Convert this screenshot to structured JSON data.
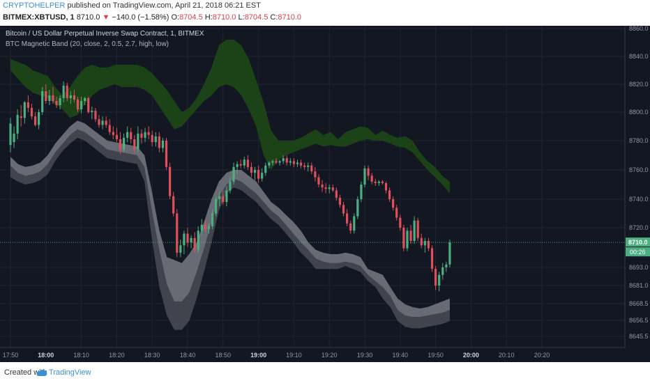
{
  "header": {
    "author": "CRYPTOHELPER",
    "published_text": "published on TradingView.com, April 21, 2018 06:21 EST",
    "symbol": "BITMEX:XBTUSD, 1",
    "last": "8710.0",
    "change": "−140.0 (−1.58%)",
    "o_label": "O:",
    "o_value": "8704.5",
    "h_label": "H:",
    "h_value": "8710.0",
    "l_label": "L:",
    "l_value": "8704.5",
    "c_label": "C:",
    "c_value": "8710.0"
  },
  "legend": {
    "title": "Bitcoin / US Dollar Perpetual Inverse Swap Contract, 1, BITMEX",
    "indicator": "BTC Magnetic Band (20, close, 2, 0.5, 2.7, high, low)"
  },
  "footer": {
    "created_with": "Created with",
    "brand": "TradingView"
  },
  "colors": {
    "background": "#131722",
    "up": "#4caf82",
    "down": "#e0505c",
    "upper_band": "#1e4a16",
    "lower_band_outer": "#4a4b55",
    "lower_band_inner": "#8b8c95",
    "last_price_tag": "#4caf82"
  },
  "chart_data": {
    "type": "candlestick",
    "y_ticks": [
      8860.0,
      8840.0,
      8820.0,
      8800.0,
      8780.0,
      8760.0,
      8740.0,
      8720.0,
      8693.0,
      8681.0,
      8668.5,
      8656.5,
      8645.5
    ],
    "y_tick_labels": [
      "8860.0",
      "8840.0",
      "8820.0",
      "8800.0",
      "8780.0",
      "8760.0",
      "8740.0",
      "8720.0",
      "8693.0",
      "8681.0",
      "8668.5",
      "8656.5",
      "8645.5"
    ],
    "x_ticks": [
      "17:50",
      "18:00",
      "18:10",
      "18:20",
      "18:30",
      "18:40",
      "18:50",
      "19:00",
      "19:10",
      "19:20",
      "19:30",
      "19:40",
      "19:50",
      "20:00",
      "20:10",
      "20:20"
    ],
    "x_tick_minutes": [
      0,
      10,
      20,
      30,
      40,
      50,
      60,
      70,
      80,
      90,
      100,
      110,
      120,
      130,
      140,
      150
    ],
    "last_price_label": "8710.0",
    "countdown_label": "00:26",
    "last_price": 8710,
    "candles": [
      {
        "o": 8777,
        "h": 8796,
        "l": 8772,
        "c": 8792
      },
      {
        "o": 8779,
        "h": 8790,
        "l": 8775,
        "c": 8785
      },
      {
        "o": 8785,
        "h": 8802,
        "l": 8781,
        "c": 8798
      },
      {
        "o": 8797,
        "h": 8805,
        "l": 8790,
        "c": 8796
      },
      {
        "o": 8796,
        "h": 8808,
        "l": 8792,
        "c": 8807
      },
      {
        "o": 8807,
        "h": 8812,
        "l": 8800,
        "c": 8803
      },
      {
        "o": 8803,
        "h": 8806,
        "l": 8795,
        "c": 8797
      },
      {
        "o": 8797,
        "h": 8800,
        "l": 8790,
        "c": 8791
      },
      {
        "o": 8791,
        "h": 8802,
        "l": 8788,
        "c": 8800
      },
      {
        "o": 8800,
        "h": 8818,
        "l": 8798,
        "c": 8815
      },
      {
        "o": 8815,
        "h": 8820,
        "l": 8806,
        "c": 8808
      },
      {
        "o": 8808,
        "h": 8816,
        "l": 8805,
        "c": 8812
      },
      {
        "o": 8812,
        "h": 8818,
        "l": 8806,
        "c": 8808
      },
      {
        "o": 8808,
        "h": 8811,
        "l": 8803,
        "c": 8805
      },
      {
        "o": 8805,
        "h": 8812,
        "l": 8802,
        "c": 8810
      },
      {
        "o": 8810,
        "h": 8822,
        "l": 8807,
        "c": 8819
      },
      {
        "o": 8819,
        "h": 8821,
        "l": 8808,
        "c": 8810
      },
      {
        "o": 8810,
        "h": 8815,
        "l": 8806,
        "c": 8812
      },
      {
        "o": 8812,
        "h": 8816,
        "l": 8807,
        "c": 8809
      },
      {
        "o": 8809,
        "h": 8811,
        "l": 8800,
        "c": 8802
      },
      {
        "o": 8802,
        "h": 8811,
        "l": 8799,
        "c": 8808
      },
      {
        "o": 8808,
        "h": 8811,
        "l": 8805,
        "c": 8810
      },
      {
        "o": 8810,
        "h": 8811,
        "l": 8799,
        "c": 8800
      },
      {
        "o": 8800,
        "h": 8804,
        "l": 8795,
        "c": 8801
      },
      {
        "o": 8801,
        "h": 8803,
        "l": 8793,
        "c": 8795
      },
      {
        "o": 8795,
        "h": 8798,
        "l": 8789,
        "c": 8791
      },
      {
        "o": 8791,
        "h": 8797,
        "l": 8788,
        "c": 8794
      },
      {
        "o": 8794,
        "h": 8797,
        "l": 8789,
        "c": 8791
      },
      {
        "o": 8791,
        "h": 8795,
        "l": 8784,
        "c": 8786
      },
      {
        "o": 8786,
        "h": 8790,
        "l": 8781,
        "c": 8784
      },
      {
        "o": 8784,
        "h": 8789,
        "l": 8779,
        "c": 8781
      },
      {
        "o": 8781,
        "h": 8786,
        "l": 8771,
        "c": 8774
      },
      {
        "o": 8774,
        "h": 8785,
        "l": 8772,
        "c": 8782
      },
      {
        "o": 8782,
        "h": 8790,
        "l": 8779,
        "c": 8786
      },
      {
        "o": 8786,
        "h": 8789,
        "l": 8778,
        "c": 8781
      },
      {
        "o": 8781,
        "h": 8784,
        "l": 8772,
        "c": 8774
      },
      {
        "o": 8774,
        "h": 8790,
        "l": 8772,
        "c": 8785
      },
      {
        "o": 8785,
        "h": 8788,
        "l": 8778,
        "c": 8782
      },
      {
        "o": 8782,
        "h": 8789,
        "l": 8779,
        "c": 8786
      },
      {
        "o": 8786,
        "h": 8790,
        "l": 8781,
        "c": 8784
      },
      {
        "o": 8784,
        "h": 8787,
        "l": 8776,
        "c": 8779
      },
      {
        "o": 8779,
        "h": 8786,
        "l": 8776,
        "c": 8783
      },
      {
        "o": 8783,
        "h": 8786,
        "l": 8772,
        "c": 8775
      },
      {
        "o": 8775,
        "h": 8782,
        "l": 8772,
        "c": 8780
      },
      {
        "o": 8780,
        "h": 8782,
        "l": 8760,
        "c": 8762
      },
      {
        "o": 8762,
        "h": 8765,
        "l": 8740,
        "c": 8742
      },
      {
        "o": 8742,
        "h": 8745,
        "l": 8728,
        "c": 8730
      },
      {
        "o": 8730,
        "h": 8733,
        "l": 8700,
        "c": 8703
      },
      {
        "o": 8703,
        "h": 8712,
        "l": 8700,
        "c": 8708
      },
      {
        "o": 8708,
        "h": 8718,
        "l": 8702,
        "c": 8716
      },
      {
        "o": 8716,
        "h": 8720,
        "l": 8707,
        "c": 8710
      },
      {
        "o": 8710,
        "h": 8715,
        "l": 8706,
        "c": 8713
      },
      {
        "o": 8713,
        "h": 8717,
        "l": 8703,
        "c": 8705
      },
      {
        "o": 8705,
        "h": 8721,
        "l": 8703,
        "c": 8718
      },
      {
        "o": 8718,
        "h": 8726,
        "l": 8715,
        "c": 8722
      },
      {
        "o": 8722,
        "h": 8725,
        "l": 8717,
        "c": 8719
      },
      {
        "o": 8719,
        "h": 8723,
        "l": 8716,
        "c": 8721
      },
      {
        "o": 8721,
        "h": 8733,
        "l": 8719,
        "c": 8730
      },
      {
        "o": 8730,
        "h": 8742,
        "l": 8728,
        "c": 8740
      },
      {
        "o": 8740,
        "h": 8745,
        "l": 8735,
        "c": 8742
      },
      {
        "o": 8742,
        "h": 8746,
        "l": 8736,
        "c": 8738
      },
      {
        "o": 8738,
        "h": 8749,
        "l": 8735,
        "c": 8746
      },
      {
        "o": 8746,
        "h": 8755,
        "l": 8744,
        "c": 8752
      },
      {
        "o": 8752,
        "h": 8765,
        "l": 8750,
        "c": 8762
      },
      {
        "o": 8762,
        "h": 8766,
        "l": 8757,
        "c": 8764
      },
      {
        "o": 8764,
        "h": 8767,
        "l": 8761,
        "c": 8763
      },
      {
        "o": 8763,
        "h": 8769,
        "l": 8761,
        "c": 8767
      },
      {
        "o": 8767,
        "h": 8770,
        "l": 8760,
        "c": 8762
      },
      {
        "o": 8762,
        "h": 8765,
        "l": 8755,
        "c": 8758
      },
      {
        "o": 8758,
        "h": 8762,
        "l": 8753,
        "c": 8760
      },
      {
        "o": 8760,
        "h": 8763,
        "l": 8751,
        "c": 8754
      },
      {
        "o": 8754,
        "h": 8761,
        "l": 8752,
        "c": 8758
      },
      {
        "o": 8758,
        "h": 8765,
        "l": 8756,
        "c": 8763
      },
      {
        "o": 8763,
        "h": 8766,
        "l": 8761,
        "c": 8765
      },
      {
        "o": 8765,
        "h": 8767,
        "l": 8763,
        "c": 8766
      },
      {
        "o": 8766,
        "h": 8768,
        "l": 8764,
        "c": 8765
      },
      {
        "o": 8765,
        "h": 8767,
        "l": 8763,
        "c": 8766
      },
      {
        "o": 8766,
        "h": 8770,
        "l": 8764,
        "c": 8768
      },
      {
        "o": 8768,
        "h": 8770,
        "l": 8763,
        "c": 8765
      },
      {
        "o": 8765,
        "h": 8768,
        "l": 8763,
        "c": 8766
      },
      {
        "o": 8766,
        "h": 8768,
        "l": 8762,
        "c": 8764
      },
      {
        "o": 8764,
        "h": 8767,
        "l": 8762,
        "c": 8765
      },
      {
        "o": 8765,
        "h": 8767,
        "l": 8761,
        "c": 8763
      },
      {
        "o": 8763,
        "h": 8765,
        "l": 8760,
        "c": 8762
      },
      {
        "o": 8762,
        "h": 8765,
        "l": 8759,
        "c": 8763
      },
      {
        "o": 8763,
        "h": 8765,
        "l": 8757,
        "c": 8759
      },
      {
        "o": 8759,
        "h": 8762,
        "l": 8752,
        "c": 8755
      },
      {
        "o": 8755,
        "h": 8757,
        "l": 8748,
        "c": 8750
      },
      {
        "o": 8750,
        "h": 8753,
        "l": 8745,
        "c": 8748
      },
      {
        "o": 8748,
        "h": 8751,
        "l": 8744,
        "c": 8747
      },
      {
        "o": 8747,
        "h": 8750,
        "l": 8744,
        "c": 8748
      },
      {
        "o": 8748,
        "h": 8750,
        "l": 8745,
        "c": 8746
      },
      {
        "o": 8746,
        "h": 8748,
        "l": 8739,
        "c": 8741
      },
      {
        "o": 8741,
        "h": 8743,
        "l": 8734,
        "c": 8736
      },
      {
        "o": 8736,
        "h": 8738,
        "l": 8728,
        "c": 8730
      },
      {
        "o": 8730,
        "h": 8733,
        "l": 8721,
        "c": 8723
      },
      {
        "o": 8723,
        "h": 8725,
        "l": 8716,
        "c": 8718
      },
      {
        "o": 8718,
        "h": 8730,
        "l": 8716,
        "c": 8728
      },
      {
        "o": 8728,
        "h": 8742,
        "l": 8726,
        "c": 8740
      },
      {
        "o": 8740,
        "h": 8752,
        "l": 8738,
        "c": 8750
      },
      {
        "o": 8750,
        "h": 8763,
        "l": 8748,
        "c": 8761
      },
      {
        "o": 8761,
        "h": 8763,
        "l": 8753,
        "c": 8756
      },
      {
        "o": 8756,
        "h": 8758,
        "l": 8750,
        "c": 8752
      },
      {
        "o": 8752,
        "h": 8754,
        "l": 8749,
        "c": 8751
      },
      {
        "o": 8751,
        "h": 8753,
        "l": 8749,
        "c": 8752
      },
      {
        "o": 8752,
        "h": 8753,
        "l": 8750,
        "c": 8751
      },
      {
        "o": 8751,
        "h": 8752,
        "l": 8744,
        "c": 8746
      },
      {
        "o": 8746,
        "h": 8748,
        "l": 8738,
        "c": 8740
      },
      {
        "o": 8740,
        "h": 8742,
        "l": 8732,
        "c": 8734
      },
      {
        "o": 8734,
        "h": 8736,
        "l": 8725,
        "c": 8727
      },
      {
        "o": 8727,
        "h": 8729,
        "l": 8718,
        "c": 8720
      },
      {
        "o": 8720,
        "h": 8722,
        "l": 8704,
        "c": 8706
      },
      {
        "o": 8706,
        "h": 8720,
        "l": 8704,
        "c": 8718
      },
      {
        "o": 8718,
        "h": 8722,
        "l": 8709,
        "c": 8711
      },
      {
        "o": 8711,
        "h": 8728,
        "l": 8709,
        "c": 8725
      },
      {
        "o": 8725,
        "h": 8727,
        "l": 8711,
        "c": 8713
      },
      {
        "o": 8713,
        "h": 8716,
        "l": 8706,
        "c": 8708
      },
      {
        "o": 8708,
        "h": 8713,
        "l": 8703,
        "c": 8711
      },
      {
        "o": 8711,
        "h": 8713,
        "l": 8704,
        "c": 8706
      },
      {
        "o": 8706,
        "h": 8708,
        "l": 8690,
        "c": 8692
      },
      {
        "o": 8692,
        "h": 8694,
        "l": 8678,
        "c": 8681
      },
      {
        "o": 8681,
        "h": 8690,
        "l": 8677,
        "c": 8688
      },
      {
        "o": 8688,
        "h": 8696,
        "l": 8685,
        "c": 8693
      },
      {
        "o": 8693,
        "h": 8697,
        "l": 8690,
        "c": 8695
      },
      {
        "o": 8695,
        "h": 8712,
        "l": 8693,
        "c": 8710
      }
    ],
    "upper_band_top": [
      8838,
      8836,
      8834,
      8830,
      8828,
      8826,
      8818,
      8812,
      8818,
      8826,
      8832,
      8834,
      8832,
      8832,
      8834,
      8834,
      8834,
      8834,
      8832,
      8828,
      8822,
      8816,
      8808,
      8800,
      8803,
      8810,
      8820,
      8832,
      8848,
      8852,
      8852,
      8848,
      8838,
      8823,
      8807,
      8787,
      8780,
      8780,
      8780,
      8782,
      8785,
      8788,
      8784,
      8786,
      8781,
      8786,
      8788,
      8790,
      8789,
      8784,
      8787,
      8784,
      8782,
      8783,
      8780,
      8772,
      8766,
      8762,
      8756,
      8752
    ],
    "upper_band_bottom": [
      8830,
      8824,
      8818,
      8814,
      8812,
      8810,
      8806,
      8802,
      8796,
      8798,
      8806,
      8812,
      8816,
      8818,
      8820,
      8818,
      8818,
      8818,
      8816,
      8812,
      8804,
      8796,
      8788,
      8790,
      8796,
      8802,
      8808,
      8812,
      8818,
      8820,
      8818,
      8812,
      8802,
      8790,
      8770,
      8760,
      8767,
      8770,
      8772,
      8774,
      8776,
      8778,
      8776,
      8777,
      8776,
      8776,
      8778,
      8780,
      8781,
      8780,
      8780,
      8778,
      8776,
      8775,
      8772,
      8766,
      8760,
      8755,
      8750,
      8744
    ],
    "lower_band_top": [
      8769,
      8764,
      8762,
      8763,
      8765,
      8770,
      8778,
      8784,
      8790,
      8794,
      8792,
      8788,
      8784,
      8780,
      8779,
      8778,
      8777,
      8776,
      8770,
      8745,
      8718,
      8700,
      8698,
      8696,
      8702,
      8710,
      8724,
      8740,
      8752,
      8758,
      8760,
      8760,
      8756,
      8752,
      8745,
      8738,
      8734,
      8729,
      8724,
      8718,
      8710,
      8705,
      8703,
      8702,
      8702,
      8703,
      8702,
      8700,
      8692,
      8690,
      8688,
      8680,
      8672,
      8668,
      8666,
      8665,
      8666,
      8668,
      8670,
      8672
    ],
    "lower_band_mid": [
      8763,
      8758,
      8756,
      8757,
      8759,
      8764,
      8772,
      8778,
      8784,
      8788,
      8786,
      8782,
      8778,
      8774,
      8773,
      8772,
      8771,
      8770,
      8762,
      8732,
      8705,
      8682,
      8670,
      8670,
      8676,
      8690,
      8706,
      8724,
      8742,
      8750,
      8754,
      8752,
      8748,
      8744,
      8738,
      8732,
      8728,
      8722,
      8716,
      8710,
      8705,
      8699,
      8697,
      8696,
      8696,
      8697,
      8696,
      8694,
      8688,
      8684,
      8680,
      8674,
      8664,
      8660,
      8659,
      8659,
      8660,
      8661,
      8662,
      8664
    ],
    "lower_band_bottom": [
      8755,
      8752,
      8750,
      8751,
      8753,
      8757,
      8766,
      8773,
      8778,
      8782,
      8780,
      8776,
      8772,
      8768,
      8767,
      8766,
      8765,
      8764,
      8752,
      8712,
      8680,
      8660,
      8650,
      8650,
      8656,
      8672,
      8690,
      8710,
      8732,
      8744,
      8748,
      8746,
      8742,
      8738,
      8732,
      8726,
      8722,
      8716,
      8710,
      8703,
      8698,
      8692,
      8692,
      8692,
      8692,
      8694,
      8692,
      8690,
      8684,
      8680,
      8672,
      8666,
      8656,
      8652,
      8651,
      8651,
      8652,
      8653,
      8654,
      8656
    ]
  }
}
